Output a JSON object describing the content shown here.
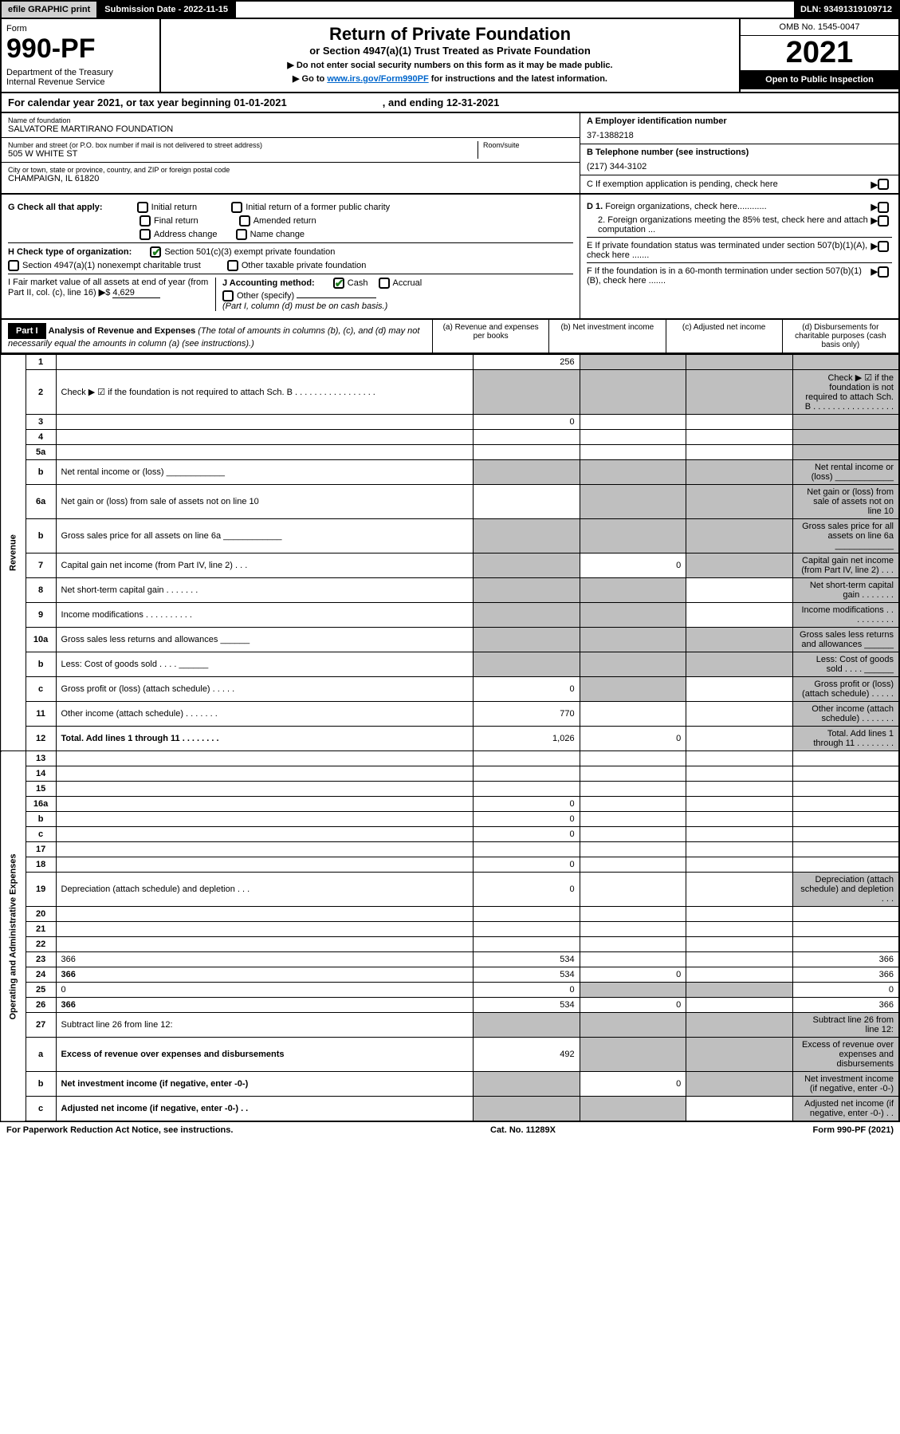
{
  "topbar": {
    "efile": "efile GRAPHIC print",
    "submission": "Submission Date - 2022-11-15",
    "dln": "DLN: 93491319109712"
  },
  "header": {
    "form_label": "Form",
    "form_no": "990-PF",
    "dept": "Department of the Treasury",
    "irs": "Internal Revenue Service",
    "title": "Return of Private Foundation",
    "subtitle": "or Section 4947(a)(1) Trust Treated as Private Foundation",
    "instr1": "▶ Do not enter social security numbers on this form as it may be made public.",
    "instr2_pre": "▶ Go to ",
    "instr2_link": "www.irs.gov/Form990PF",
    "instr2_post": " for instructions and the latest information.",
    "omb": "OMB No. 1545-0047",
    "year": "2021",
    "open": "Open to Public Inspection"
  },
  "cal": {
    "text_a": "For calendar year 2021, or tax year beginning 01-01-2021",
    "text_b": ", and ending 12-31-2021"
  },
  "entity": {
    "name_label": "Name of foundation",
    "name": "SALVATORE MARTIRANO FOUNDATION",
    "addr_label": "Number and street (or P.O. box number if mail is not delivered to street address)",
    "addr": "505 W WHITE ST",
    "room_label": "Room/suite",
    "city_label": "City or town, state or province, country, and ZIP or foreign postal code",
    "city": "CHAMPAIGN, IL  61820",
    "ein_label": "A Employer identification number",
    "ein": "37-1388218",
    "phone_label": "B Telephone number (see instructions)",
    "phone": "(217) 344-3102",
    "c_label": "C If exemption application is pending, check here",
    "d1": "D 1. Foreign organizations, check here............",
    "d2": "2. Foreign organizations meeting the 85% test, check here and attach computation ...",
    "e_label": "E  If private foundation status was terminated under section 507(b)(1)(A), check here .......",
    "f_label": "F  If the foundation is in a 60-month termination under section 507(b)(1)(B), check here .......",
    "g_label": "G Check all that apply:",
    "g_initial": "Initial return",
    "g_initial_pub": "Initial return of a former public charity",
    "g_final": "Final return",
    "g_amended": "Amended return",
    "g_addr": "Address change",
    "g_name": "Name change",
    "h_label": "H Check type of organization:",
    "h_501": "Section 501(c)(3) exempt private foundation",
    "h_4947": "Section 4947(a)(1) nonexempt charitable trust",
    "h_other": "Other taxable private foundation",
    "i_label": "I Fair market value of all assets at end of year (from Part II, col. (c), line 16)",
    "i_val": "4,629",
    "j_label": "J Accounting method:",
    "j_cash": "Cash",
    "j_accrual": "Accrual",
    "j_other": "Other (specify)",
    "j_note": "(Part I, column (d) must be on cash basis.)"
  },
  "part1": {
    "label": "Part I",
    "title": "Analysis of Revenue and Expenses",
    "note": "(The total of amounts in columns (b), (c), and (d) may not necessarily equal the amounts in column (a) (see instructions).)",
    "col_a": "(a)   Revenue and expenses per books",
    "col_b": "(b)   Net investment income",
    "col_c": "(c)   Adjusted net income",
    "col_d": "(d)  Disbursements for charitable purposes (cash basis only)"
  },
  "sections": {
    "revenue": "Revenue",
    "opex": "Operating and Administrative Expenses"
  },
  "rows": [
    {
      "n": "1",
      "d": "",
      "a": "256",
      "b": "",
      "c": "",
      "shade_b": true,
      "shade_c": true,
      "shade_d": true
    },
    {
      "n": "2",
      "d": "Check ▶ ☑ if the foundation is not required to attach Sch. B   . . . . . . . . . . . . . . . . .",
      "a": "",
      "shade_a": true,
      "shade_b": true,
      "shade_c": true,
      "shade_d": true
    },
    {
      "n": "3",
      "d": "",
      "a": "0",
      "b": "",
      "c": "",
      "shade_d": true
    },
    {
      "n": "4",
      "d": "",
      "a": "",
      "b": "",
      "c": "",
      "shade_d": true
    },
    {
      "n": "5a",
      "d": "",
      "a": "",
      "b": "",
      "c": "",
      "shade_d": true
    },
    {
      "n": "b",
      "d": "Net rental income or (loss)   ____________",
      "shade_a": true,
      "shade_b": true,
      "shade_c": true,
      "shade_d": true
    },
    {
      "n": "6a",
      "d": "Net gain or (loss) from sale of assets not on line 10",
      "a": "",
      "shade_b": true,
      "shade_c": true,
      "shade_d": true
    },
    {
      "n": "b",
      "d": "Gross sales price for all assets on line 6a ____________",
      "shade_a": true,
      "shade_b": true,
      "shade_c": true,
      "shade_d": true
    },
    {
      "n": "7",
      "d": "Capital gain net income (from Part IV, line 2)   . . .",
      "shade_a": true,
      "b": "0",
      "shade_c": true,
      "shade_d": true
    },
    {
      "n": "8",
      "d": "Net short-term capital gain   . . . . . . .",
      "shade_a": true,
      "shade_b": true,
      "c": "",
      "shade_d": true
    },
    {
      "n": "9",
      "d": "Income modifications . . . . . . . . . .",
      "shade_a": true,
      "shade_b": true,
      "c": "",
      "shade_d": true
    },
    {
      "n": "10a",
      "d": "Gross sales less returns and allowances   ______",
      "shade_a": true,
      "shade_b": true,
      "shade_c": true,
      "shade_d": true
    },
    {
      "n": "b",
      "d": "Less: Cost of goods sold   . . . .   ______",
      "shade_a": true,
      "shade_b": true,
      "shade_c": true,
      "shade_d": true
    },
    {
      "n": "c",
      "d": "Gross profit or (loss) (attach schedule)   . . . . .",
      "a": "0",
      "shade_b": true,
      "c": "",
      "shade_d": true
    },
    {
      "n": "11",
      "d": "Other income (attach schedule)   . . . . . . .",
      "a": "770",
      "b": "",
      "c": "",
      "shade_d": true
    },
    {
      "n": "12",
      "d": "Total. Add lines 1 through 11   . . . . . . . .",
      "bold": true,
      "a": "1,026",
      "b": "0",
      "c": "",
      "shade_d": true
    },
    {
      "n": "13",
      "d": "",
      "a": "",
      "b": "",
      "c": ""
    },
    {
      "n": "14",
      "d": "",
      "a": "",
      "b": "",
      "c": ""
    },
    {
      "n": "15",
      "d": "",
      "a": "",
      "b": "",
      "c": ""
    },
    {
      "n": "16a",
      "d": "",
      "a": "0",
      "b": "",
      "c": ""
    },
    {
      "n": "b",
      "d": "",
      "a": "0",
      "b": "",
      "c": ""
    },
    {
      "n": "c",
      "d": "",
      "a": "0",
      "b": "",
      "c": ""
    },
    {
      "n": "17",
      "d": "",
      "a": "",
      "b": "",
      "c": ""
    },
    {
      "n": "18",
      "d": "",
      "a": "0",
      "b": "",
      "c": ""
    },
    {
      "n": "19",
      "d": "Depreciation (attach schedule) and depletion   . . .",
      "a": "0",
      "b": "",
      "c": "",
      "shade_d": true
    },
    {
      "n": "20",
      "d": "",
      "a": "",
      "b": "",
      "c": ""
    },
    {
      "n": "21",
      "d": "",
      "a": "",
      "b": "",
      "c": ""
    },
    {
      "n": "22",
      "d": "",
      "a": "",
      "b": "",
      "c": ""
    },
    {
      "n": "23",
      "d": "366",
      "a": "534",
      "b": "",
      "c": ""
    },
    {
      "n": "24",
      "d": "366",
      "bold": true,
      "a": "534",
      "b": "0",
      "c": ""
    },
    {
      "n": "25",
      "d": "0",
      "a": "0",
      "shade_b": true,
      "shade_c": true
    },
    {
      "n": "26",
      "d": "366",
      "bold": true,
      "a": "534",
      "b": "0",
      "c": ""
    },
    {
      "n": "27",
      "d": "Subtract line 26 from line 12:",
      "shade_a": true,
      "shade_b": true,
      "shade_c": true,
      "shade_d": true
    },
    {
      "n": "a",
      "d": "Excess of revenue over expenses and disbursements",
      "bold": true,
      "a": "492",
      "shade_b": true,
      "shade_c": true,
      "shade_d": true
    },
    {
      "n": "b",
      "d": "Net investment income (if negative, enter -0-)",
      "bold": true,
      "shade_a": true,
      "b": "0",
      "shade_c": true,
      "shade_d": true
    },
    {
      "n": "c",
      "d": "Adjusted net income (if negative, enter -0-)   . .",
      "bold": true,
      "shade_a": true,
      "shade_b": true,
      "c": "",
      "shade_d": true
    }
  ],
  "footer": {
    "left": "For Paperwork Reduction Act Notice, see instructions.",
    "mid": "Cat. No. 11289X",
    "right": "Form 990-PF (2021)"
  }
}
